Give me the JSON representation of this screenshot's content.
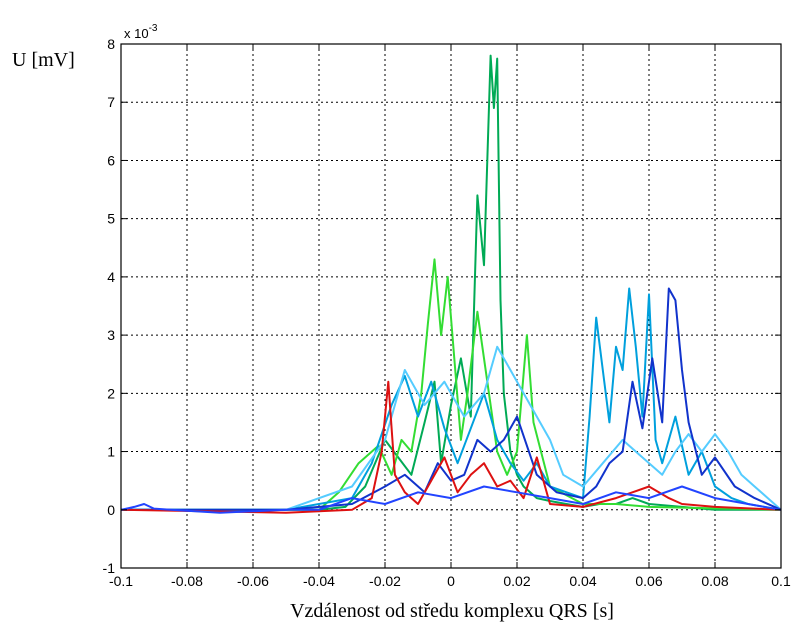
{
  "chart_data": {
    "type": "line",
    "title": "",
    "xlabel": "Vzdálenost od středu komplexu QRS [s]",
    "ylabel": "U [mV]",
    "y_multiplier": {
      "base": "x 10",
      "exponent": "-3"
    },
    "xlim": [
      -0.1,
      0.1
    ],
    "ylim": [
      -1,
      8
    ],
    "y_unit_scale": 0.001,
    "grid": true,
    "grid_style": "dotted",
    "legend": "none",
    "x_ticks": [
      -0.1,
      -0.08,
      -0.06,
      -0.04,
      -0.02,
      0,
      0.02,
      0.04,
      0.06,
      0.08,
      0.1
    ],
    "x_tick_labels": [
      "-0.1",
      "-0.08",
      "-0.06",
      "-0.04",
      "-0.02",
      "0",
      "0.02",
      "0.04",
      "0.06",
      "0.08",
      "0.1"
    ],
    "y_ticks": [
      -1,
      0,
      1,
      2,
      3,
      4,
      5,
      6,
      7,
      8
    ],
    "y_tick_labels": [
      "-1",
      "0",
      "1",
      "2",
      "3",
      "4",
      "5",
      "6",
      "7",
      "8"
    ],
    "series": [
      {
        "color": "#00aa55",
        "x": [
          -0.1,
          -0.04,
          -0.032,
          -0.026,
          -0.02,
          -0.016,
          -0.012,
          -0.008,
          -0.005,
          -0.003,
          0,
          0.003,
          0.006,
          0.008,
          0.01,
          0.012,
          0.013,
          0.014,
          0.015,
          0.016,
          0.018,
          0.02,
          0.022,
          0.024,
          0.026,
          0.03,
          0.035,
          0.04,
          0.045,
          0.05,
          0.055,
          0.06,
          0.07,
          0.08,
          0.1
        ],
        "y": [
          0,
          0,
          0.05,
          0.4,
          1.2,
          0.9,
          0.6,
          1.5,
          2.2,
          0.8,
          1.8,
          2.6,
          1.6,
          5.4,
          4.2,
          7.8,
          6.9,
          7.75,
          3.6,
          2.0,
          1.0,
          0.6,
          0.4,
          0.3,
          0.2,
          0.15,
          0.1,
          0.05,
          0.1,
          0.1,
          0.2,
          0.1,
          0.05,
          0,
          0
        ]
      },
      {
        "color": "#33dd33",
        "x": [
          -0.1,
          -0.04,
          -0.034,
          -0.028,
          -0.022,
          -0.018,
          -0.015,
          -0.012,
          -0.009,
          -0.007,
          -0.005,
          -0.003,
          -0.001,
          0.001,
          0.003,
          0.005,
          0.008,
          0.011,
          0.014,
          0.017,
          0.02,
          0.023,
          0.025,
          0.03,
          0.04,
          0.05,
          0.06,
          0.1
        ],
        "y": [
          0,
          0,
          0.3,
          0.8,
          1.1,
          0.6,
          1.2,
          1.0,
          2.0,
          3.2,
          4.3,
          3.0,
          4.0,
          2.6,
          1.2,
          2.0,
          3.4,
          2.2,
          1.0,
          0.6,
          1.0,
          3.0,
          1.5,
          0.4,
          0.1,
          0.1,
          0.05,
          0
        ]
      },
      {
        "color": "#00a0dd",
        "x": [
          -0.1,
          -0.05,
          -0.03,
          -0.024,
          -0.018,
          -0.014,
          -0.01,
          -0.006,
          -0.002,
          0.002,
          0.006,
          0.01,
          0.014,
          0.018,
          0.022,
          0.026,
          0.03,
          0.035,
          0.04,
          0.042,
          0.044,
          0.046,
          0.048,
          0.05,
          0.052,
          0.054,
          0.056,
          0.058,
          0.06,
          0.062,
          0.064,
          0.068,
          0.072,
          0.076,
          0.08,
          0.085,
          0.09,
          0.095,
          0.1
        ],
        "y": [
          0,
          0,
          0.2,
          0.8,
          1.8,
          2.3,
          1.6,
          2.2,
          1.4,
          0.8,
          1.4,
          2.0,
          1.2,
          0.8,
          0.5,
          0.8,
          0.4,
          0.3,
          0.2,
          1.6,
          3.3,
          2.4,
          1.5,
          2.8,
          2.4,
          3.8,
          2.8,
          1.6,
          3.7,
          1.2,
          0.8,
          1.6,
          0.6,
          1.0,
          0.4,
          0.2,
          0.1,
          0.05,
          0
        ]
      },
      {
        "color": "#55ccff",
        "x": [
          -0.1,
          -0.05,
          -0.03,
          -0.02,
          -0.014,
          -0.008,
          -0.002,
          0.004,
          0.01,
          0.014,
          0.018,
          0.022,
          0.026,
          0.03,
          0.034,
          0.04,
          0.046,
          0.052,
          0.058,
          0.064,
          0.068,
          0.072,
          0.076,
          0.08,
          0.084,
          0.088,
          0.092,
          0.096,
          0.1
        ],
        "y": [
          0,
          0,
          0.4,
          1.2,
          2.4,
          1.8,
          2.2,
          1.6,
          2.0,
          2.8,
          2.4,
          2.0,
          1.6,
          1.2,
          0.6,
          0.4,
          0.8,
          1.2,
          0.9,
          0.6,
          1.0,
          1.3,
          1.0,
          1.3,
          1.0,
          0.6,
          0.4,
          0.2,
          0
        ]
      },
      {
        "color": "#1133cc",
        "x": [
          -0.1,
          -0.05,
          -0.03,
          -0.02,
          -0.014,
          -0.008,
          -0.004,
          0,
          0.004,
          0.008,
          0.012,
          0.016,
          0.02,
          0.026,
          0.032,
          0.04,
          0.044,
          0.048,
          0.052,
          0.055,
          0.058,
          0.061,
          0.064,
          0.066,
          0.068,
          0.07,
          0.072,
          0.076,
          0.08,
          0.086,
          0.092,
          0.1
        ],
        "y": [
          0,
          0,
          0.1,
          0.4,
          0.6,
          0.3,
          0.8,
          0.5,
          0.6,
          1.2,
          1.0,
          1.2,
          1.6,
          0.6,
          0.3,
          0.2,
          0.4,
          0.8,
          1.0,
          2.2,
          1.4,
          2.6,
          1.5,
          3.8,
          3.6,
          2.4,
          1.5,
          0.6,
          0.9,
          0.4,
          0.2,
          0
        ]
      },
      {
        "color": "#dd1111",
        "x": [
          -0.1,
          -0.05,
          -0.03,
          -0.024,
          -0.021,
          -0.019,
          -0.017,
          -0.014,
          -0.01,
          -0.006,
          -0.002,
          0.002,
          0.006,
          0.01,
          0.014,
          0.018,
          0.022,
          0.026,
          0.03,
          0.04,
          0.05,
          0.06,
          0.066,
          0.07,
          0.08,
          0.1
        ],
        "y": [
          0,
          -0.05,
          0,
          0.2,
          1.0,
          2.2,
          0.6,
          0.3,
          0.1,
          0.5,
          0.9,
          0.3,
          0.6,
          0.8,
          0.4,
          0.5,
          0.2,
          0.9,
          0.1,
          0.05,
          0.2,
          0.4,
          0.2,
          0.1,
          0.05,
          0
        ]
      },
      {
        "color": "#2244ff",
        "x": [
          -0.1,
          -0.096,
          -0.093,
          -0.09,
          -0.085,
          -0.07,
          -0.05,
          -0.04,
          -0.03,
          -0.02,
          -0.01,
          0,
          0.01,
          0.02,
          0.03,
          0.04,
          0.05,
          0.06,
          0.07,
          0.08,
          0.09,
          0.1
        ],
        "y": [
          0,
          0.05,
          0.1,
          0.02,
          0,
          -0.05,
          0,
          0,
          0.2,
          0.1,
          0.3,
          0.2,
          0.4,
          0.3,
          0.2,
          0.1,
          0.3,
          0.2,
          0.4,
          0.2,
          0.1,
          0
        ]
      }
    ]
  }
}
